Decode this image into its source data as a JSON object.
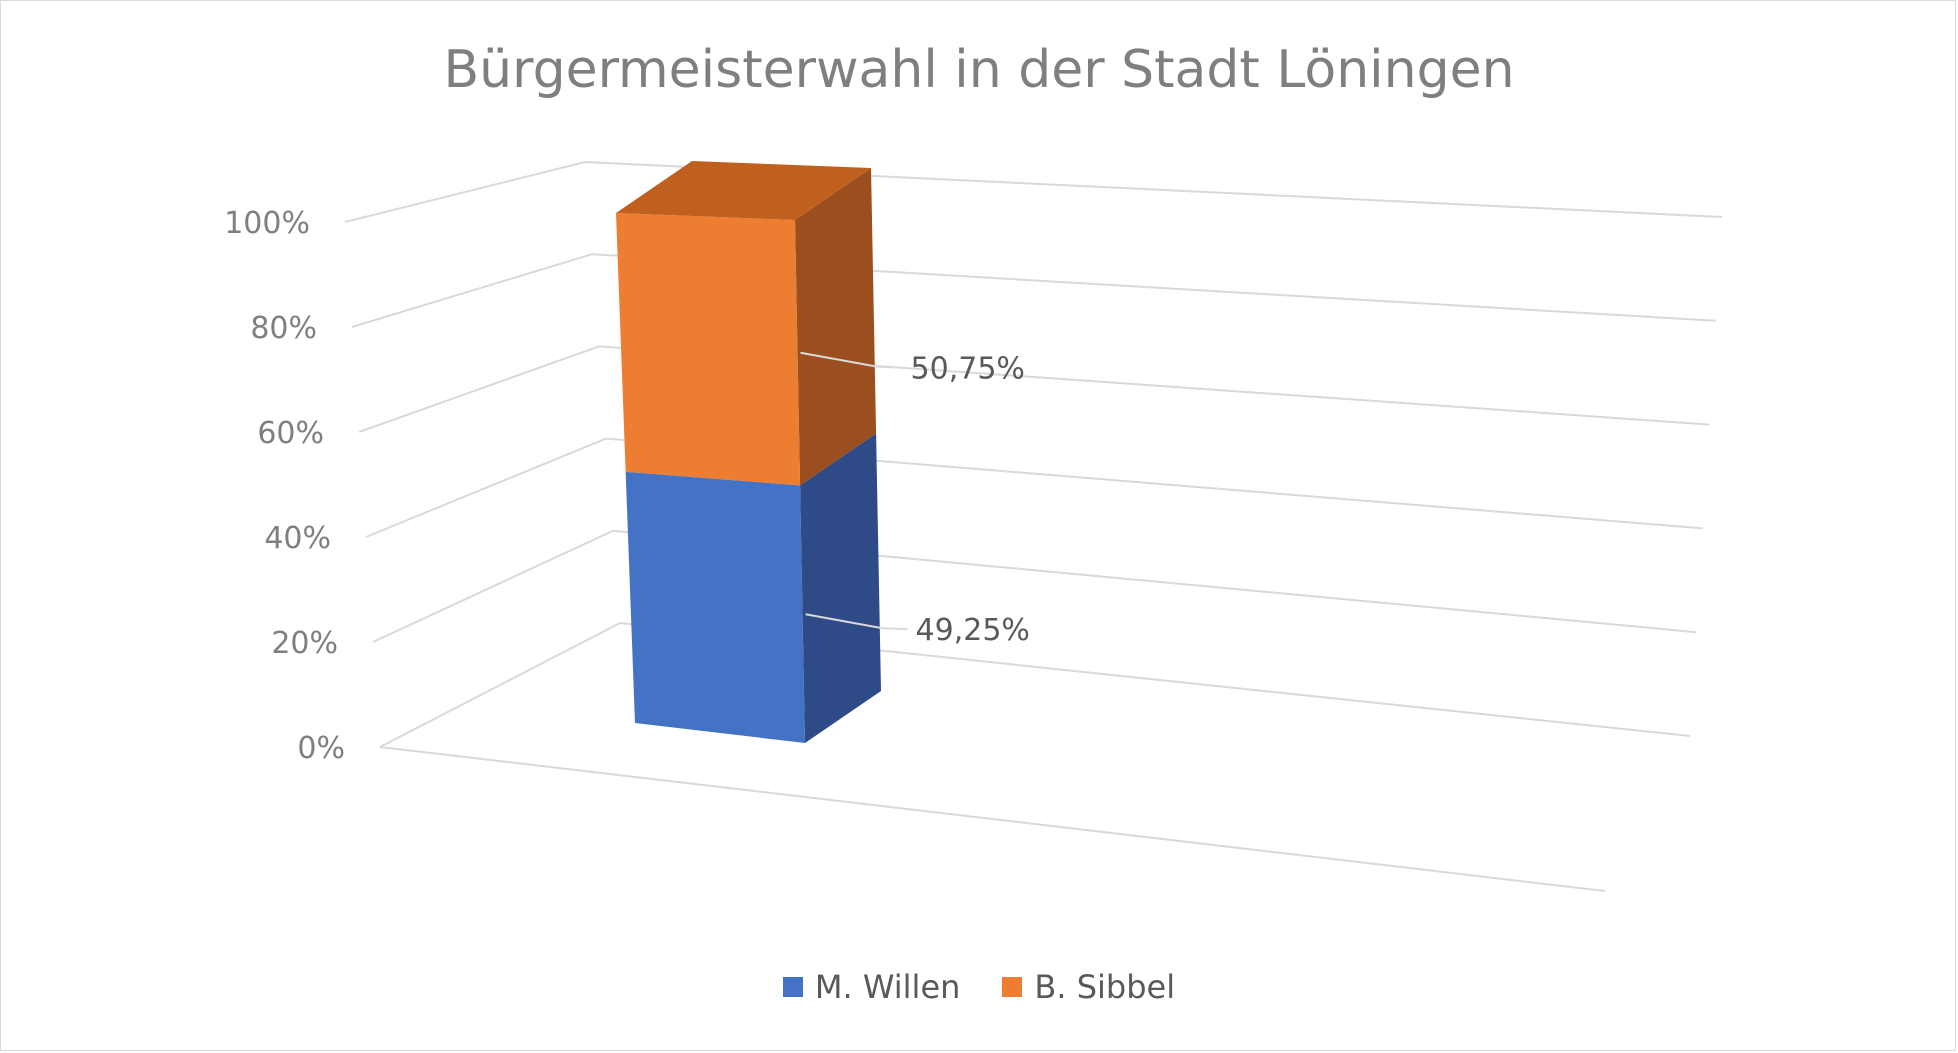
{
  "chart_data": {
    "type": "bar",
    "stacked": true,
    "percent_stacked": true,
    "three_d": true,
    "title": "Bürgermeisterwahl in der Stadt Löningen",
    "categories": [
      ""
    ],
    "series": [
      {
        "name": "M. Willen",
        "values": [
          49.25
        ],
        "label": "49,25%",
        "color": "#4472c4",
        "side_color": "#2e4b87"
      },
      {
        "name": "B. Sibbel",
        "values": [
          50.75
        ],
        "label": "50,75%",
        "color": "#ed7d31",
        "side_color": "#9c4f1e",
        "top_color": "#c0601f"
      }
    ],
    "y_ticks": [
      "0%",
      "20%",
      "40%",
      "60%",
      "80%",
      "100%"
    ],
    "ylim": [
      0,
      100
    ],
    "grid": true,
    "legend_position": "bottom"
  }
}
